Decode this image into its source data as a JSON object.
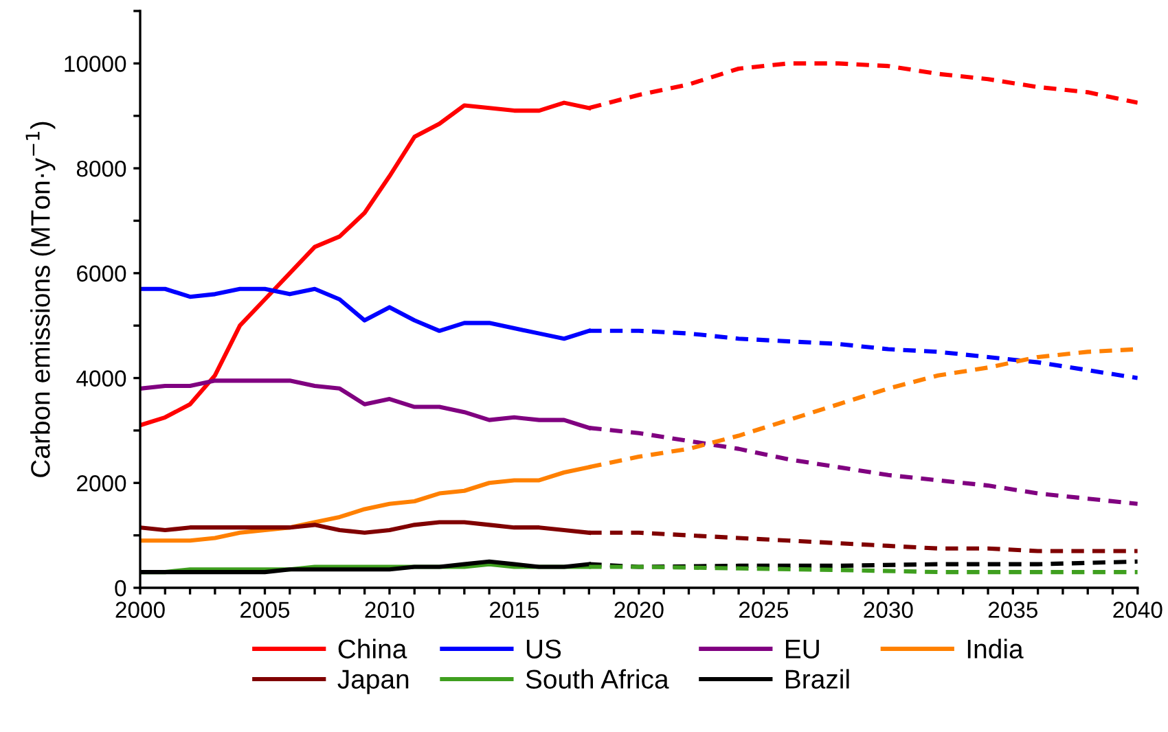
{
  "chart_data": {
    "type": "line",
    "ylabel": "Carbon emissions (MTon·y$^{−1}$)",
    "legend": "bottom",
    "grid": false,
    "line_style": "solid",
    "xlim": [
      2000,
      2040
    ],
    "ylim": [
      0,
      11000
    ],
    "xticks": [
      2000,
      {
        "value": 2001,
        "label": null
      },
      {
        "value": 2002,
        "label": null
      },
      {
        "value": 2003,
        "label": null
      },
      {
        "value": 2004,
        "label": null
      },
      2005,
      {
        "value": 2006,
        "label": null
      },
      {
        "value": 2007,
        "label": null
      },
      {
        "value": 2008,
        "label": null
      },
      {
        "value": 2009,
        "label": null
      },
      2010,
      {
        "value": 2011,
        "label": null
      },
      {
        "value": 2012,
        "label": null
      },
      {
        "value": 2013,
        "label": null
      },
      {
        "value": 2014,
        "label": null
      },
      2015,
      {
        "value": 2016,
        "label": null
      },
      {
        "value": 2017,
        "label": null
      },
      {
        "value": 2018,
        "label": null
      },
      {
        "value": 2019,
        "label": null
      },
      2020,
      {
        "value": 2021,
        "label": null
      },
      {
        "value": 2022,
        "label": null
      },
      {
        "value": 2023,
        "label": null
      },
      {
        "value": 2024,
        "label": null
      },
      2025,
      {
        "value": 2026,
        "label": null
      },
      {
        "value": 2027,
        "label": null
      },
      {
        "value": 2028,
        "label": null
      },
      {
        "value": 2029,
        "label": null
      },
      2030,
      {
        "value": 2031,
        "label": null
      },
      {
        "value": 2032,
        "label": null
      },
      {
        "value": 2033,
        "label": null
      },
      {
        "value": 2034,
        "label": null
      },
      2035,
      {
        "value": 2036,
        "label": null
      },
      {
        "value": 2037,
        "label": null
      },
      {
        "value": 2038,
        "label": null
      },
      {
        "value": 2039,
        "label": null
      },
      2040
    ],
    "yticks": [
      0,
      {
        "value": 1000,
        "label": null
      },
      2000,
      {
        "value": 3000,
        "label": null
      },
      4000,
      {
        "value": 5000,
        "label": null
      },
      6000,
      {
        "value": 7000,
        "label": null
      },
      8000,
      {
        "value": 9000,
        "label": null
      },
      10000,
      {
        "value": 11000,
        "label": null
      }
    ],
    "series": [
      {
        "name": "China",
        "color": "#ff0000",
        "x": [
          2000,
          2001,
          2002,
          2003,
          2004,
          2005,
          2006,
          2007,
          2008,
          2009,
          2010,
          2011,
          2012,
          2013,
          2014,
          2015,
          2016,
          2017,
          2018
        ],
        "values": [
          3100,
          3250,
          3500,
          4050,
          5000,
          5500,
          6000,
          6500,
          6700,
          7150,
          7850,
          8600,
          8850,
          9200,
          9150,
          9100,
          9100,
          9250,
          9150
        ]
      },
      {
        "name": "US",
        "color": "#0000ff",
        "x": [
          2000,
          2001,
          2002,
          2003,
          2004,
          2005,
          2006,
          2007,
          2008,
          2009,
          2010,
          2011,
          2012,
          2013,
          2014,
          2015,
          2016,
          2017,
          2018
        ],
        "values": [
          5700,
          5700,
          5550,
          5600,
          5700,
          5700,
          5600,
          5700,
          5500,
          5100,
          5350,
          5100,
          4900,
          5050,
          5050,
          4950,
          4850,
          4750,
          4900
        ]
      },
      {
        "name": "EU",
        "color": "#800080",
        "x": [
          2000,
          2001,
          2002,
          2003,
          2004,
          2005,
          2006,
          2007,
          2008,
          2009,
          2010,
          2011,
          2012,
          2013,
          2014,
          2015,
          2016,
          2017,
          2018
        ],
        "values": [
          3800,
          3850,
          3850,
          3950,
          3950,
          3950,
          3950,
          3850,
          3800,
          3500,
          3600,
          3450,
          3450,
          3350,
          3200,
          3250,
          3200,
          3200,
          3050
        ]
      },
      {
        "name": "India",
        "color": "#ff8000",
        "x": [
          2000,
          2001,
          2002,
          2003,
          2004,
          2005,
          2006,
          2007,
          2008,
          2009,
          2010,
          2011,
          2012,
          2013,
          2014,
          2015,
          2016,
          2017,
          2018
        ],
        "values": [
          900,
          900,
          900,
          950,
          1050,
          1100,
          1150,
          1250,
          1350,
          1500,
          1600,
          1650,
          1800,
          1850,
          2000,
          2050,
          2050,
          2200,
          2300
        ]
      },
      {
        "name": "Japan",
        "color": "#800000",
        "x": [
          2000,
          2001,
          2002,
          2003,
          2004,
          2005,
          2006,
          2007,
          2008,
          2009,
          2010,
          2011,
          2012,
          2013,
          2014,
          2015,
          2016,
          2017,
          2018
        ],
        "values": [
          1150,
          1100,
          1150,
          1150,
          1150,
          1150,
          1150,
          1200,
          1100,
          1050,
          1100,
          1200,
          1250,
          1250,
          1200,
          1150,
          1150,
          1100,
          1050
        ]
      },
      {
        "name": "South Africa",
        "color": "#3f9f1f",
        "x": [
          2000,
          2001,
          2002,
          2003,
          2004,
          2005,
          2006,
          2007,
          2008,
          2009,
          2010,
          2011,
          2012,
          2013,
          2014,
          2015,
          2016,
          2017,
          2018
        ],
        "values": [
          300,
          300,
          350,
          350,
          350,
          350,
          350,
          400,
          400,
          400,
          400,
          400,
          400,
          400,
          450,
          400,
          400,
          400,
          400
        ]
      },
      {
        "name": "Brazil",
        "color": "#000000",
        "x": [
          2000,
          2001,
          2002,
          2003,
          2004,
          2005,
          2006,
          2007,
          2008,
          2009,
          2010,
          2011,
          2012,
          2013,
          2014,
          2015,
          2016,
          2017,
          2018
        ],
        "values": [
          300,
          300,
          300,
          300,
          300,
          300,
          350,
          350,
          350,
          350,
          350,
          400,
          400,
          450,
          500,
          450,
          400,
          400,
          450
        ]
      },
      {
        "color": "#ff0000",
        "line_style": "dashed",
        "x": [
          2018,
          2020,
          2022,
          2024,
          2026,
          2028,
          2030,
          2032,
          2034,
          2036,
          2038,
          2040
        ],
        "values": [
          9150,
          9400,
          9600,
          9900,
          10000,
          10000,
          9950,
          9800,
          9700,
          9550,
          9450,
          9250
        ]
      },
      {
        "color": "#0000ff",
        "line_style": "dashed",
        "x": [
          2018,
          2020,
          2022,
          2024,
          2026,
          2028,
          2030,
          2032,
          2034,
          2036,
          2038,
          2040
        ],
        "values": [
          4900,
          4900,
          4850,
          4750,
          4700,
          4650,
          4550,
          4500,
          4400,
          4300,
          4150,
          4000
        ]
      },
      {
        "color": "#800080",
        "line_style": "dashed",
        "x": [
          2018,
          2020,
          2022,
          2024,
          2026,
          2028,
          2030,
          2032,
          2034,
          2036,
          2038,
          2040
        ],
        "values": [
          3050,
          2950,
          2800,
          2650,
          2450,
          2300,
          2150,
          2050,
          1950,
          1800,
          1700,
          1600
        ]
      },
      {
        "color": "#ff8000",
        "line_style": "dashed",
        "x": [
          2018,
          2020,
          2022,
          2024,
          2026,
          2028,
          2030,
          2032,
          2034,
          2036,
          2038,
          2040
        ],
        "values": [
          2300,
          2500,
          2650,
          2900,
          3200,
          3500,
          3800,
          4050,
          4200,
          4400,
          4500,
          4550
        ]
      },
      {
        "color": "#800000",
        "line_style": "dashed",
        "x": [
          2018,
          2020,
          2022,
          2024,
          2026,
          2028,
          2030,
          2032,
          2034,
          2036,
          2038,
          2040
        ],
        "values": [
          1050,
          1050,
          1000,
          950,
          900,
          850,
          800,
          750,
          750,
          700,
          700,
          700
        ]
      },
      {
        "color": "#000000",
        "line_style": "dashed",
        "x": [
          2018,
          2020,
          2024,
          2028,
          2032,
          2036,
          2040
        ],
        "values": [
          450,
          400,
          420,
          420,
          450,
          450,
          500
        ]
      },
      {
        "color": "#3f9f1f",
        "line_style": "dashed",
        "x": [
          2018,
          2020,
          2024,
          2028,
          2032,
          2036,
          2040
        ],
        "values": [
          400,
          400,
          370,
          340,
          300,
          300,
          300
        ]
      }
    ]
  }
}
